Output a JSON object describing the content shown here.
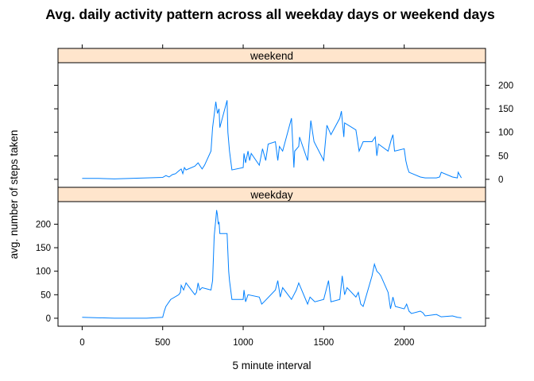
{
  "chart_data": {
    "type": "line",
    "title": "Avg. daily activity pattern across all weekday days or weekend days",
    "xlabel": "5 minute interval",
    "ylabel": "avg. number of steps taken",
    "xlim": [
      -150,
      2505
    ],
    "ylim": [
      -17,
      248
    ],
    "x_ticks": [
      0,
      500,
      1000,
      1500,
      2000
    ],
    "y_ticks": [
      0,
      50,
      100,
      150,
      200
    ],
    "line_color": "#0080ff",
    "strip_color": "#ffe5cc",
    "panels": [
      {
        "name": "weekend",
        "y_axis_side": "right",
        "x": [
          0,
          100,
          200,
          300,
          400,
          500,
          520,
          540,
          560,
          580,
          600,
          615,
          625,
          635,
          645,
          700,
          720,
          745,
          760,
          800,
          810,
          830,
          840,
          850,
          855,
          900,
          905,
          915,
          930,
          1000,
          1005,
          1015,
          1030,
          1040,
          1050,
          1100,
          1120,
          1140,
          1155,
          1200,
          1215,
          1225,
          1245,
          1300,
          1315,
          1320,
          1345,
          1350,
          1400,
          1420,
          1440,
          1500,
          1520,
          1545,
          1600,
          1610,
          1625,
          1630,
          1700,
          1720,
          1745,
          1800,
          1820,
          1830,
          1840,
          1900,
          1920,
          1930,
          1940,
          2000,
          2010,
          2020,
          2030,
          2100,
          2130,
          2200,
          2220,
          2230,
          2300,
          2330,
          2335,
          2355
        ],
        "values": [
          2,
          2,
          1,
          2,
          3,
          4,
          8,
          5,
          10,
          12,
          18,
          22,
          12,
          25,
          20,
          28,
          35,
          22,
          30,
          60,
          110,
          165,
          140,
          150,
          110,
          168,
          100,
          60,
          20,
          25,
          55,
          35,
          60,
          40,
          55,
          30,
          65,
          40,
          75,
          80,
          40,
          70,
          60,
          130,
          25,
          60,
          70,
          90,
          40,
          125,
          80,
          40,
          115,
          95,
          130,
          145,
          90,
          120,
          105,
          60,
          80,
          80,
          90,
          50,
          75,
          60,
          85,
          95,
          60,
          65,
          40,
          25,
          15,
          5,
          3,
          3,
          5,
          15,
          5,
          3,
          15,
          3
        ]
      },
      {
        "name": "weekday",
        "y_axis_side": "left",
        "x": [
          0,
          100,
          200,
          300,
          400,
          500,
          510,
          520,
          530,
          540,
          550,
          600,
          610,
          615,
          630,
          645,
          700,
          710,
          720,
          730,
          745,
          800,
          810,
          820,
          830,
          835,
          840,
          845,
          850,
          855,
          900,
          905,
          910,
          915,
          930,
          1000,
          1005,
          1015,
          1030,
          1100,
          1115,
          1130,
          1200,
          1215,
          1230,
          1245,
          1300,
          1315,
          1330,
          1345,
          1400,
          1415,
          1430,
          1445,
          1500,
          1515,
          1530,
          1545,
          1600,
          1615,
          1630,
          1645,
          1700,
          1715,
          1730,
          1745,
          1800,
          1815,
          1830,
          1845,
          1855,
          1900,
          1915,
          1930,
          1945,
          2000,
          2015,
          2030,
          2045,
          2100,
          2115,
          2130,
          2200,
          2230,
          2300,
          2330,
          2355
        ],
        "values": [
          2,
          1,
          0,
          0,
          0,
          2,
          15,
          25,
          30,
          35,
          40,
          50,
          55,
          70,
          60,
          75,
          50,
          55,
          75,
          60,
          65,
          60,
          80,
          175,
          210,
          230,
          220,
          200,
          205,
          180,
          180,
          140,
          100,
          80,
          40,
          40,
          60,
          35,
          50,
          45,
          30,
          35,
          60,
          80,
          45,
          65,
          40,
          50,
          60,
          75,
          30,
          45,
          40,
          35,
          40,
          60,
          80,
          35,
          40,
          90,
          50,
          65,
          45,
          55,
          30,
          25,
          90,
          115,
          100,
          95,
          90,
          55,
          20,
          45,
          25,
          20,
          30,
          15,
          10,
          15,
          12,
          5,
          8,
          3,
          5,
          2,
          1
        ]
      }
    ]
  }
}
